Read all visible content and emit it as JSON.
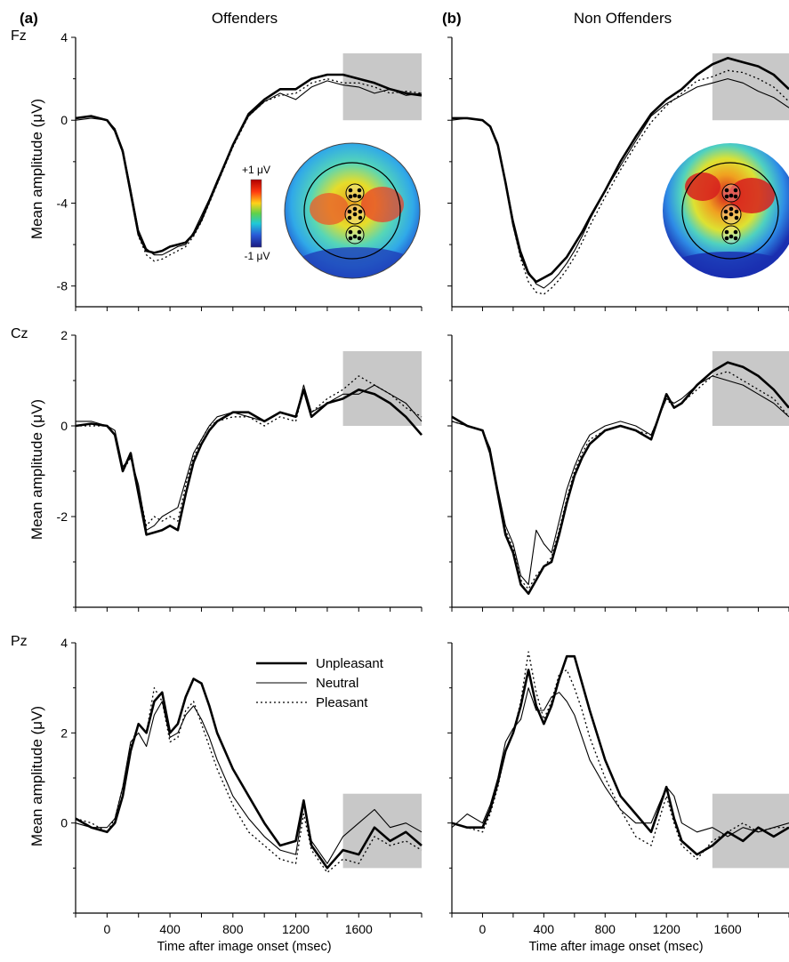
{
  "figure": {
    "panels": [
      {
        "letter": "(a)",
        "title": "Offenders"
      },
      {
        "letter": "(b)",
        "title": "Non Offenders"
      }
    ],
    "rows": [
      {
        "electrode": "Fz",
        "ylabel": "Mean amplitude (μV)",
        "ylim": [
          -9,
          4
        ],
        "yticks": [
          4,
          0,
          -4,
          -8
        ]
      },
      {
        "electrode": "Cz",
        "ylabel": "Mean amplitude (μV)",
        "ylim": [
          -4,
          2
        ],
        "yticks": [
          2,
          0,
          -2
        ]
      },
      {
        "electrode": "Pz",
        "ylabel": "Mean amplitude (μV)",
        "ylim": [
          -2,
          4
        ],
        "yticks": [
          4,
          2,
          0
        ]
      }
    ],
    "xlabel": "Time after image onset (msec)",
    "xticks": [
      0,
      400,
      800,
      1200,
      1600
    ],
    "xlim": [
      -200,
      2000
    ],
    "legend": {
      "placement": "top-right of Pz offenders panel",
      "entries": [
        "Unpleasant",
        "Neutral",
        "Pleasant"
      ]
    },
    "colorbar": {
      "max_label": "+1 μV",
      "min_label": "-1 μV"
    },
    "shaded_window_ms": [
      1500,
      2000
    ]
  },
  "chart_data": [
    {
      "type": "line",
      "panel": "Offenders",
      "electrode": "Fz",
      "x": [
        -200,
        -100,
        0,
        50,
        100,
        150,
        200,
        250,
        300,
        350,
        400,
        450,
        500,
        550,
        600,
        650,
        700,
        800,
        900,
        1000,
        1100,
        1200,
        1300,
        1400,
        1500,
        1600,
        1700,
        1800,
        1900,
        2000
      ],
      "ylim": [
        -9,
        4
      ],
      "series": [
        {
          "name": "Unpleasant",
          "values": [
            0.1,
            0.2,
            0,
            -0.5,
            -1.5,
            -3.5,
            -5.5,
            -6.3,
            -6.4,
            -6.3,
            -6.1,
            -6.0,
            -5.9,
            -5.5,
            -4.8,
            -3.9,
            -3.0,
            -1.2,
            0.3,
            1.0,
            1.5,
            1.5,
            2.0,
            2.2,
            2.2,
            2.0,
            1.8,
            1.5,
            1.3,
            1.2
          ]
        },
        {
          "name": "Neutral",
          "values": [
            0.0,
            0.1,
            0,
            -0.4,
            -1.4,
            -3.3,
            -5.3,
            -6.2,
            -6.5,
            -6.5,
            -6.3,
            -6.1,
            -6.0,
            -5.4,
            -4.6,
            -3.8,
            -2.9,
            -1.2,
            0.2,
            0.9,
            1.3,
            1.0,
            1.6,
            1.9,
            1.7,
            1.6,
            1.3,
            1.5,
            1.2,
            1.3
          ]
        },
        {
          "name": "Pleasant",
          "values": [
            0.1,
            0.2,
            0,
            -0.5,
            -1.6,
            -3.6,
            -5.6,
            -6.5,
            -6.8,
            -6.7,
            -6.5,
            -6.3,
            -6.1,
            -5.6,
            -4.9,
            -4.0,
            -3.1,
            -1.3,
            0.2,
            0.9,
            1.2,
            1.3,
            1.8,
            2.0,
            1.8,
            1.8,
            1.6,
            1.3,
            1.4,
            1.3
          ]
        }
      ]
    },
    {
      "type": "line",
      "panel": "Non Offenders",
      "electrode": "Fz",
      "x": [
        -200,
        -100,
        0,
        50,
        100,
        150,
        200,
        250,
        300,
        350,
        400,
        450,
        500,
        550,
        600,
        650,
        700,
        800,
        900,
        1000,
        1100,
        1200,
        1300,
        1400,
        1500,
        1600,
        1700,
        1800,
        1900,
        2000
      ],
      "ylim": [
        -9,
        4
      ],
      "series": [
        {
          "name": "Unpleasant",
          "values": [
            0.1,
            0.1,
            0,
            -0.3,
            -1.2,
            -3.0,
            -5.0,
            -6.5,
            -7.4,
            -7.8,
            -7.6,
            -7.4,
            -7.0,
            -6.6,
            -6.0,
            -5.4,
            -4.7,
            -3.4,
            -2.0,
            -0.8,
            0.3,
            1.0,
            1.5,
            2.2,
            2.7,
            3.0,
            2.8,
            2.6,
            2.2,
            1.5
          ]
        },
        {
          "name": "Neutral",
          "values": [
            0.0,
            0.1,
            0,
            -0.3,
            -1.1,
            -2.9,
            -4.8,
            -6.3,
            -7.3,
            -7.9,
            -8.1,
            -7.8,
            -7.4,
            -6.9,
            -6.3,
            -5.6,
            -4.8,
            -3.4,
            -2.2,
            -1.0,
            0.2,
            0.8,
            1.2,
            1.6,
            1.8,
            2.0,
            1.8,
            1.4,
            1.1,
            0.6
          ]
        },
        {
          "name": "Pleasant",
          "values": [
            0.1,
            0.1,
            0,
            -0.3,
            -1.2,
            -3.1,
            -5.1,
            -6.7,
            -7.8,
            -8.3,
            -8.4,
            -8.1,
            -7.7,
            -7.2,
            -6.6,
            -5.9,
            -5.1,
            -3.7,
            -2.4,
            -1.2,
            -0.1,
            0.7,
            1.3,
            1.9,
            2.1,
            2.4,
            2.3,
            2.0,
            1.6,
            0.9
          ]
        }
      ]
    },
    {
      "type": "line",
      "panel": "Offenders",
      "electrode": "Cz",
      "x": [
        -200,
        -100,
        0,
        50,
        100,
        150,
        200,
        250,
        300,
        350,
        400,
        450,
        500,
        550,
        600,
        650,
        700,
        800,
        900,
        1000,
        1100,
        1200,
        1250,
        1300,
        1400,
        1500,
        1600,
        1700,
        1800,
        1900,
        2000
      ],
      "ylim": [
        -4,
        2
      ],
      "series": [
        {
          "name": "Unpleasant",
          "values": [
            0.0,
            0.05,
            0,
            -0.2,
            -1.0,
            -0.6,
            -1.5,
            -2.4,
            -2.35,
            -2.3,
            -2.2,
            -2.3,
            -1.5,
            -0.8,
            -0.4,
            -0.1,
            0.1,
            0.3,
            0.3,
            0.1,
            0.3,
            0.2,
            0.8,
            0.2,
            0.5,
            0.6,
            0.8,
            0.7,
            0.5,
            0.2,
            -0.2
          ]
        },
        {
          "name": "Neutral",
          "values": [
            0.1,
            0.1,
            0,
            -0.1,
            -0.9,
            -0.7,
            -1.3,
            -2.3,
            -2.2,
            -2.0,
            -1.9,
            -1.8,
            -1.2,
            -0.6,
            -0.3,
            0.0,
            0.2,
            0.3,
            0.2,
            0.1,
            0.3,
            0.2,
            0.9,
            0.3,
            0.5,
            0.7,
            0.7,
            0.9,
            0.7,
            0.5,
            0.1
          ]
        },
        {
          "name": "Pleasant",
          "values": [
            0.0,
            0.0,
            0,
            -0.2,
            -1.0,
            -0.7,
            -1.4,
            -2.2,
            -2.0,
            -2.1,
            -2.0,
            -2.1,
            -1.3,
            -0.7,
            -0.3,
            0.0,
            0.1,
            0.2,
            0.2,
            0.0,
            0.2,
            0.1,
            0.8,
            0.3,
            0.6,
            0.8,
            1.1,
            0.9,
            0.7,
            0.4,
            0.2
          ]
        }
      ]
    },
    {
      "type": "line",
      "panel": "Non Offenders",
      "electrode": "Cz",
      "x": [
        -200,
        -100,
        0,
        50,
        100,
        150,
        200,
        250,
        300,
        350,
        400,
        450,
        500,
        550,
        600,
        650,
        700,
        800,
        900,
        1000,
        1100,
        1200,
        1250,
        1300,
        1400,
        1500,
        1600,
        1700,
        1800,
        1900,
        2000
      ],
      "ylim": [
        -4,
        2
      ],
      "series": [
        {
          "name": "Unpleasant",
          "values": [
            0.2,
            0.0,
            -0.1,
            -0.6,
            -1.5,
            -2.4,
            -2.8,
            -3.5,
            -3.7,
            -3.4,
            -3.1,
            -3.0,
            -2.4,
            -1.7,
            -1.1,
            -0.7,
            -0.4,
            -0.1,
            0.0,
            -0.1,
            -0.3,
            0.7,
            0.4,
            0.5,
            0.9,
            1.2,
            1.4,
            1.3,
            1.1,
            0.8,
            0.4
          ]
        },
        {
          "name": "Neutral",
          "values": [
            0.1,
            0.0,
            -0.1,
            -0.5,
            -1.4,
            -2.2,
            -2.6,
            -3.3,
            -3.5,
            -2.3,
            -2.6,
            -2.8,
            -2.1,
            -1.4,
            -0.9,
            -0.5,
            -0.2,
            0.0,
            0.1,
            0.0,
            -0.2,
            0.6,
            0.5,
            0.6,
            0.9,
            1.1,
            1.0,
            0.9,
            0.7,
            0.5,
            0.2
          ]
        },
        {
          "name": "Pleasant",
          "values": [
            0.1,
            0.0,
            -0.1,
            -0.6,
            -1.5,
            -2.3,
            -2.7,
            -3.4,
            -3.6,
            -3.3,
            -3.1,
            -2.9,
            -2.3,
            -1.6,
            -1.0,
            -0.6,
            -0.3,
            -0.1,
            0.0,
            -0.1,
            -0.2,
            0.6,
            0.4,
            0.5,
            0.8,
            1.1,
            1.2,
            1.0,
            0.8,
            0.6,
            0.2
          ]
        }
      ]
    },
    {
      "type": "line",
      "panel": "Offenders",
      "electrode": "Pz",
      "x": [
        -200,
        -100,
        0,
        50,
        100,
        150,
        200,
        250,
        300,
        350,
        400,
        450,
        500,
        550,
        600,
        650,
        700,
        800,
        900,
        1000,
        1100,
        1200,
        1250,
        1300,
        1400,
        1500,
        1600,
        1700,
        1800,
        1900,
        2000
      ],
      "ylim": [
        -2,
        4
      ],
      "series": [
        {
          "name": "Unpleasant",
          "values": [
            0.1,
            -0.1,
            -0.2,
            0.0,
            0.6,
            1.6,
            2.2,
            2.0,
            2.7,
            2.9,
            2.0,
            2.2,
            2.8,
            3.2,
            3.1,
            2.6,
            2.0,
            1.2,
            0.6,
            0.0,
            -0.5,
            -0.4,
            0.5,
            -0.5,
            -1.0,
            -0.6,
            -0.7,
            -0.1,
            -0.4,
            -0.2,
            -0.5
          ]
        },
        {
          "name": "Neutral",
          "values": [
            0.0,
            -0.1,
            -0.1,
            0.1,
            0.8,
            1.8,
            2.0,
            1.7,
            2.4,
            2.7,
            1.9,
            2.0,
            2.4,
            2.6,
            2.3,
            1.9,
            1.4,
            0.6,
            0.1,
            -0.3,
            -0.6,
            -0.7,
            0.4,
            -0.4,
            -0.9,
            -0.3,
            0.0,
            0.3,
            -0.1,
            0.0,
            -0.2
          ]
        },
        {
          "name": "Pleasant",
          "values": [
            0.1,
            0.0,
            -0.2,
            0.1,
            0.8,
            1.7,
            2.2,
            2.0,
            3.0,
            2.7,
            1.8,
            1.9,
            2.5,
            2.7,
            2.2,
            1.7,
            1.2,
            0.4,
            -0.2,
            -0.5,
            -0.8,
            -0.9,
            0.2,
            -0.6,
            -1.1,
            -0.8,
            -0.9,
            -0.3,
            -0.5,
            -0.4,
            -0.6
          ]
        }
      ]
    },
    {
      "type": "line",
      "panel": "Non Offenders",
      "electrode": "Pz",
      "x": [
        -200,
        -100,
        0,
        50,
        100,
        150,
        200,
        250,
        300,
        350,
        400,
        450,
        500,
        550,
        600,
        650,
        700,
        800,
        900,
        1000,
        1100,
        1200,
        1250,
        1300,
        1400,
        1500,
        1600,
        1700,
        1800,
        1900,
        2000
      ],
      "ylim": [
        -2,
        4
      ],
      "series": [
        {
          "name": "Unpleasant",
          "values": [
            0.0,
            -0.1,
            -0.1,
            0.3,
            0.9,
            1.6,
            2.0,
            2.6,
            3.4,
            2.6,
            2.2,
            2.6,
            3.2,
            3.7,
            3.7,
            3.1,
            2.5,
            1.4,
            0.6,
            0.2,
            -0.2,
            0.8,
            0.1,
            -0.4,
            -0.7,
            -0.5,
            -0.2,
            -0.4,
            -0.1,
            -0.3,
            -0.1
          ]
        },
        {
          "name": "Neutral",
          "values": [
            -0.1,
            0.2,
            0.0,
            0.4,
            1.0,
            1.8,
            2.1,
            2.3,
            3.0,
            2.5,
            2.5,
            2.8,
            2.9,
            2.7,
            2.4,
            1.9,
            1.4,
            0.8,
            0.3,
            0.0,
            0.0,
            0.8,
            0.6,
            0.0,
            -0.2,
            -0.1,
            -0.3,
            -0.1,
            -0.2,
            -0.1,
            0.0
          ]
        },
        {
          "name": "Pleasant",
          "values": [
            0.0,
            -0.1,
            -0.2,
            0.2,
            0.8,
            1.6,
            2.0,
            2.7,
            3.8,
            2.9,
            2.3,
            2.7,
            3.3,
            3.4,
            3.0,
            2.5,
            1.9,
            1.0,
            0.3,
            -0.3,
            -0.5,
            0.6,
            0.0,
            -0.5,
            -0.8,
            -0.4,
            -0.2,
            0.0,
            -0.2,
            -0.1,
            -0.1
          ]
        }
      ]
    }
  ]
}
